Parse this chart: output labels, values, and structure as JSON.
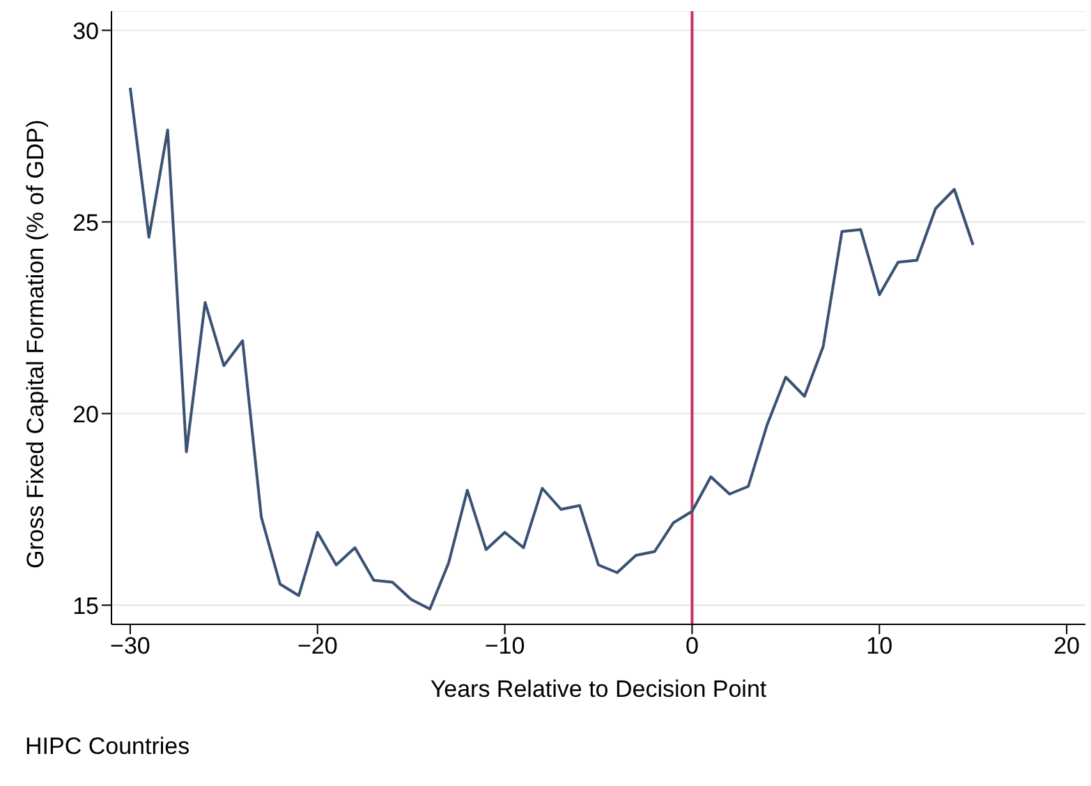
{
  "chart_data": {
    "type": "line",
    "xlabel": "Years Relative to Decision Point",
    "ylabel": "Gross Fixed Capital Formation (% of GDP)",
    "annotations": [
      "HIPC Countries"
    ],
    "x": [
      -30,
      -29,
      -28,
      -27,
      -26,
      -25,
      -24,
      -23,
      -22,
      -21,
      -20,
      -19,
      -18,
      -17,
      -16,
      -15,
      -14,
      -13,
      -12,
      -11,
      -10,
      -9,
      -8,
      -7,
      -6,
      -5,
      -4,
      -3,
      -2,
      -1,
      0,
      1,
      2,
      3,
      4,
      5,
      6,
      7,
      8,
      9,
      10,
      11,
      12,
      13,
      14,
      15
    ],
    "series": [
      {
        "color": "#3a5273",
        "values": [
          28.5,
          24.6,
          27.4,
          19.0,
          22.9,
          21.25,
          21.9,
          17.3,
          15.55,
          15.25,
          16.9,
          16.05,
          16.5,
          15.65,
          15.6,
          15.15,
          14.9,
          16.1,
          18.0,
          16.45,
          16.9,
          16.5,
          18.05,
          17.5,
          17.6,
          16.05,
          15.85,
          16.3,
          16.4,
          17.15,
          17.45,
          18.35,
          17.9,
          18.1,
          19.7,
          20.95,
          20.45,
          21.75,
          24.75,
          24.8,
          23.1,
          23.95,
          24.0,
          25.35,
          25.85,
          24.4
        ]
      }
    ],
    "xlim": [
      -31,
      21
    ],
    "xticks": [
      {
        "value": -30,
        "label": "−30"
      },
      {
        "value": -20,
        "label": "−20"
      },
      {
        "value": -10,
        "label": "−10"
      },
      0,
      10,
      20
    ],
    "ylim": [
      14.5,
      30.5
    ],
    "yticks": [
      15,
      20,
      25,
      30
    ],
    "grid": "y",
    "line_style": "solid",
    "marker": "none",
    "ref_lines": [
      {
        "axis": "x",
        "value": 0,
        "color": "#c8325a"
      }
    ]
  }
}
